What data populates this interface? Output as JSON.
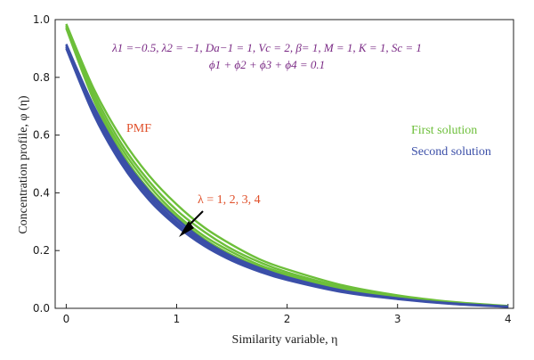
{
  "chart_data": {
    "type": "line",
    "xlabel": "Similarity variable, η",
    "ylabel": "Concentration profile, φ (η)",
    "xlim": [
      -0.1,
      4.05
    ],
    "ylim": [
      0,
      1.0
    ],
    "x_ticks": [
      "0",
      "1",
      "2",
      "3",
      "4"
    ],
    "y_ticks": [
      "0.0",
      "0.2",
      "0.4",
      "0.6",
      "0.8",
      "1.0"
    ],
    "grid": false,
    "parameters_line1": "λ1 =−0.5, λ2 = −1, Da−1 = 1, Vc = 2, β= 1, M = 1, K = 1, Sc = 1",
    "parameters_line2": "ϕ1 + ϕ2 + ϕ3 + ϕ4 = 0.1",
    "annotations": {
      "pmf": "PMF",
      "lambda_label": "λ = 1, 2, 3, 4"
    },
    "legend": {
      "placement": "right",
      "first": "First solution",
      "second": "Second solution"
    },
    "colors": {
      "first": "#6dbf3a",
      "second": "#3b4fa8",
      "params": "#7a2a85",
      "annotation": "#e0502a",
      "arrow": "#000000"
    },
    "x": [
      0,
      0.25,
      0.5,
      0.75,
      1.0,
      1.25,
      1.5,
      1.75,
      2.0,
      2.5,
      3.0,
      3.5,
      4.0
    ],
    "series": [
      {
        "group": "first",
        "lambda": 1,
        "values": [
          0.985,
          0.76,
          0.59,
          0.46,
          0.36,
          0.28,
          0.22,
          0.17,
          0.135,
          0.08,
          0.045,
          0.022,
          0.008
        ]
      },
      {
        "group": "first",
        "lambda": 2,
        "values": [
          0.98,
          0.745,
          0.57,
          0.44,
          0.34,
          0.265,
          0.205,
          0.16,
          0.125,
          0.074,
          0.042,
          0.02,
          0.007
        ]
      },
      {
        "group": "first",
        "lambda": 3,
        "values": [
          0.975,
          0.73,
          0.555,
          0.425,
          0.325,
          0.25,
          0.195,
          0.15,
          0.118,
          0.07,
          0.04,
          0.019,
          0.007
        ]
      },
      {
        "group": "first",
        "lambda": 4,
        "values": [
          0.97,
          0.72,
          0.54,
          0.41,
          0.315,
          0.24,
          0.185,
          0.143,
          0.112,
          0.066,
          0.037,
          0.018,
          0.006
        ]
      },
      {
        "group": "second",
        "lambda": 1,
        "values": [
          0.915,
          0.7,
          0.53,
          0.405,
          0.31,
          0.235,
          0.18,
          0.14,
          0.108,
          0.062,
          0.035,
          0.017,
          0.006
        ]
      },
      {
        "group": "second",
        "lambda": 2,
        "values": [
          0.91,
          0.69,
          0.52,
          0.395,
          0.3,
          0.228,
          0.175,
          0.135,
          0.104,
          0.06,
          0.034,
          0.016,
          0.006
        ]
      },
      {
        "group": "second",
        "lambda": 3,
        "values": [
          0.905,
          0.68,
          0.51,
          0.385,
          0.292,
          0.222,
          0.17,
          0.131,
          0.101,
          0.058,
          0.033,
          0.016,
          0.006
        ]
      },
      {
        "group": "second",
        "lambda": 4,
        "values": [
          0.9,
          0.67,
          0.5,
          0.375,
          0.285,
          0.216,
          0.165,
          0.127,
          0.098,
          0.056,
          0.032,
          0.015,
          0.005
        ]
      }
    ]
  }
}
